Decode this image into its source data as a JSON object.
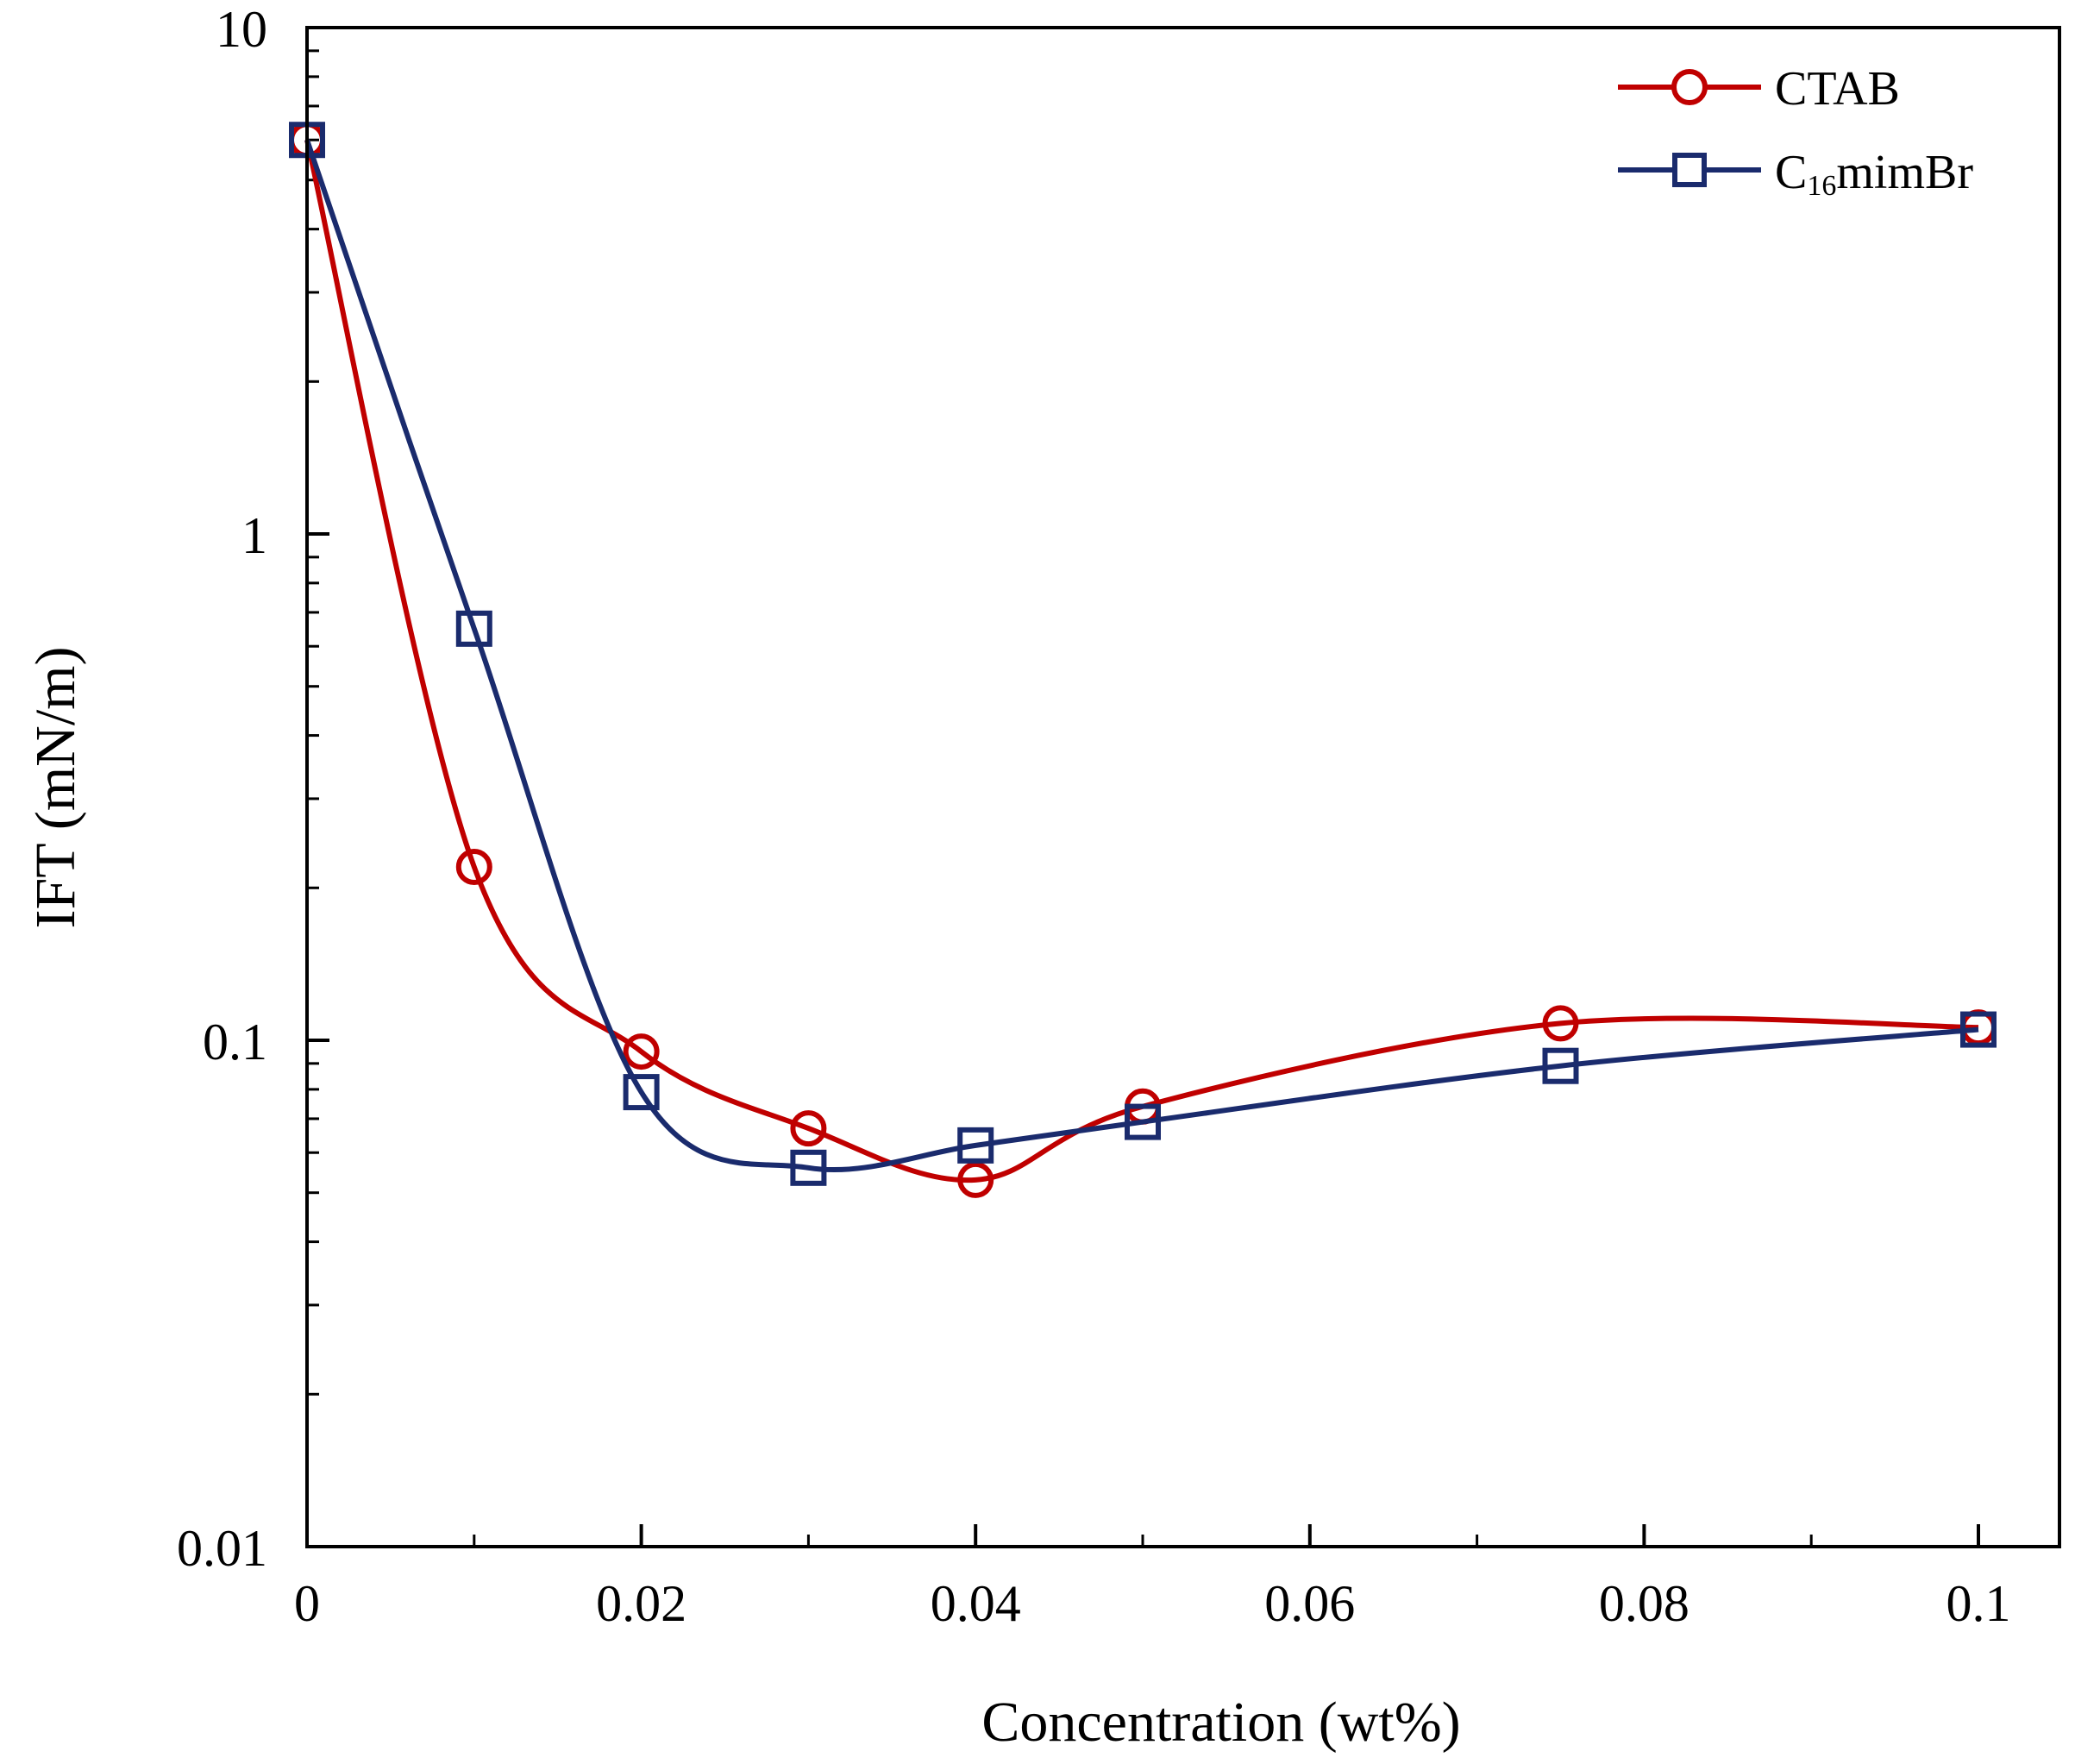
{
  "chart_data": {
    "type": "line",
    "title": "",
    "xlabel": "Concentration (wt%)",
    "ylabel": "IFT (mN/m)",
    "xlim": [
      0,
      0.105
    ],
    "ylim": [
      0.01,
      10
    ],
    "yscale": "log",
    "xticks": [
      0,
      0.02,
      0.04,
      0.06,
      0.08,
      0.1
    ],
    "xtick_labels": [
      "0",
      "0.02",
      "0.04",
      "0.06",
      "0.08",
      "0.1"
    ],
    "yticks": [
      0.01,
      0.1,
      1,
      10
    ],
    "ytick_labels": [
      "0.01",
      "0.1",
      "1",
      "10"
    ],
    "legend_position": "top-right",
    "series": [
      {
        "name": "CTAB",
        "color": "#c00000",
        "marker": "circle",
        "x": [
          0,
          0.01,
          0.02,
          0.03,
          0.04,
          0.05,
          0.075,
          0.1
        ],
        "y": [
          6.0,
          0.22,
          0.095,
          0.067,
          0.053,
          0.074,
          0.108,
          0.106
        ]
      },
      {
        "name": "C16mimBr",
        "legend_main": "C",
        "legend_sub": "16",
        "legend_tail": "mimBr",
        "color": "#1a2b6d",
        "marker": "square",
        "x": [
          0,
          0.01,
          0.02,
          0.03,
          0.04,
          0.05,
          0.075,
          0.1
        ],
        "y": [
          6.0,
          0.65,
          0.079,
          0.056,
          0.062,
          0.069,
          0.089,
          0.105
        ]
      }
    ]
  }
}
